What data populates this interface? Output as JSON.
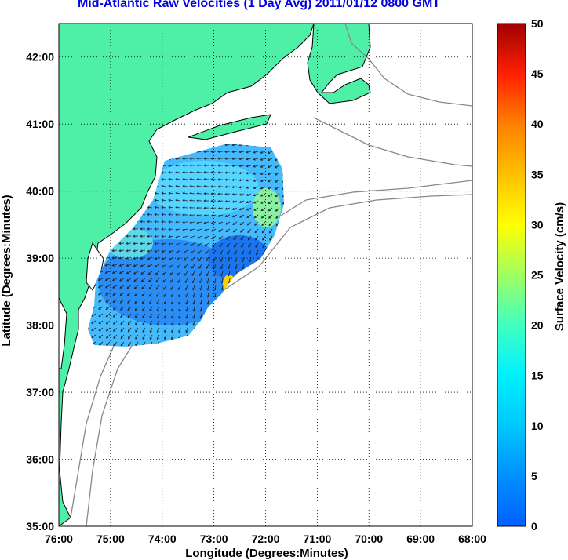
{
  "title": "Mid-Atlantic Raw Velocities (1 Day Avg) 2011/01/12 0800 GMT",
  "map": {
    "lon_ticks": [
      "76:00",
      "75:00",
      "74:00",
      "73:00",
      "72:00",
      "71:00",
      "70:00",
      "69:00",
      "68:00"
    ],
    "lat_ticks": [
      "35:00",
      "36:00",
      "37:00",
      "38:00",
      "39:00",
      "40:00",
      "41:00",
      "42:00"
    ],
    "xlabel": "Longitude (Degrees:Minutes)",
    "ylabel": "Latitude (Degrees:Minutes)",
    "lon_range_west": [
      76,
      68
    ],
    "lat_range": [
      35,
      42.5
    ],
    "grid": "dotted",
    "land_color": "#4ef0a8",
    "coast_color": "#000000",
    "bathymetry_color": "#888888"
  },
  "colorbar": {
    "label": "Surface Velocity (cm/s)",
    "ticks": [
      "0",
      "5",
      "10",
      "15",
      "20",
      "25",
      "30",
      "35",
      "40",
      "45",
      "50"
    ],
    "range": [
      0,
      50
    ],
    "colors": [
      "#0060ff",
      "#0090ff",
      "#00c8ff",
      "#00f0ff",
      "#40ffc0",
      "#a0ff60",
      "#ffff00",
      "#ffc000",
      "#ff8000",
      "#ff2000",
      "#a00000"
    ]
  }
}
